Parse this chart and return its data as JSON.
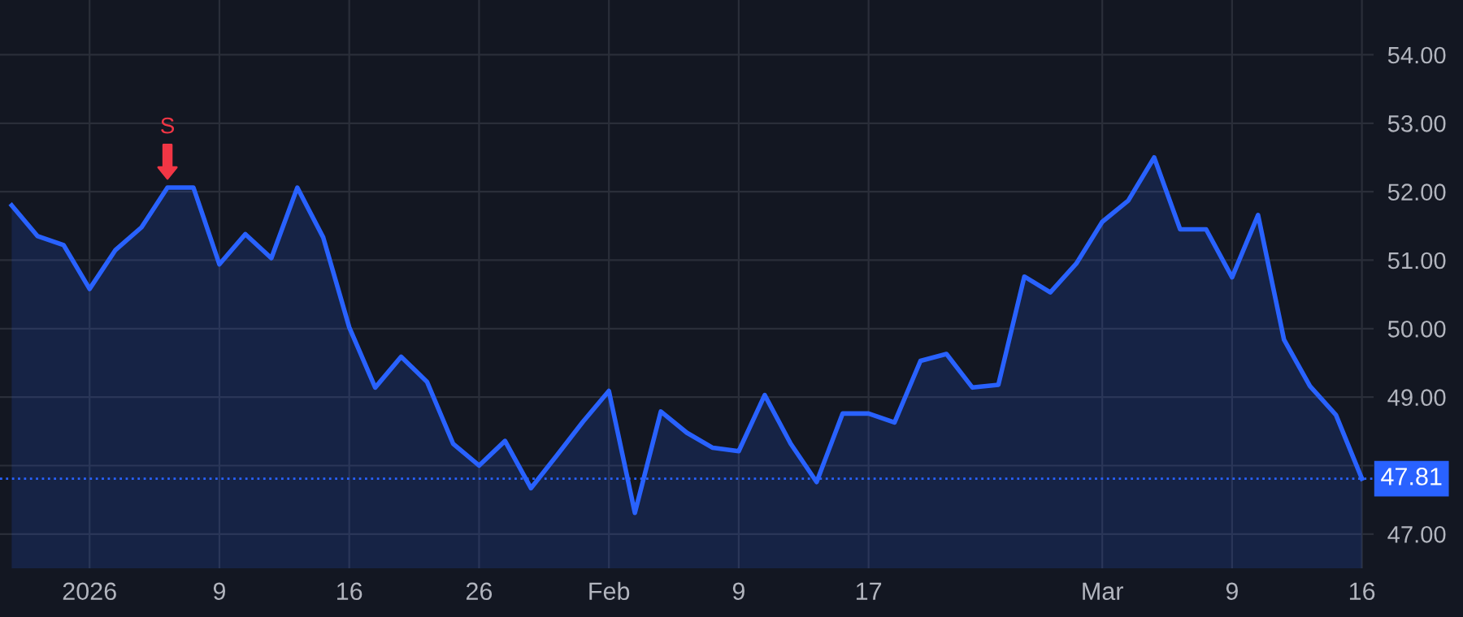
{
  "chart_data": {
    "type": "area",
    "categories": [
      null,
      null,
      null,
      "2026",
      null,
      null,
      null,
      null,
      "9",
      null,
      null,
      null,
      null,
      "16",
      null,
      null,
      null,
      null,
      "26",
      null,
      null,
      null,
      null,
      "Feb",
      null,
      null,
      null,
      null,
      "9",
      null,
      null,
      null,
      null,
      "17",
      null,
      null,
      null,
      null,
      null,
      null,
      null,
      null,
      "Mar",
      null,
      null,
      null,
      null,
      "9",
      null,
      null,
      null,
      null,
      "16"
    ],
    "series": [
      {
        "color": "#2962ff",
        "values": [
          51.8,
          51.35,
          51.22,
          50.58,
          51.15,
          51.48,
          52.06,
          52.06,
          50.94,
          51.38,
          51.03,
          52.06,
          51.33,
          50.02,
          49.14,
          49.59,
          49.22,
          48.32,
          48.0,
          48.36,
          47.67,
          48.15,
          48.64,
          49.09,
          47.31,
          48.79,
          48.48,
          48.26,
          48.21,
          49.03,
          48.32,
          47.76,
          48.76,
          48.76,
          48.63,
          49.53,
          49.63,
          49.14,
          49.18,
          50.76,
          50.53,
          50.95,
          51.56,
          51.87,
          52.5,
          51.45,
          51.45,
          50.75,
          51.66,
          49.84,
          49.16,
          48.74,
          47.81
        ]
      }
    ],
    "ylim": [
      46.5,
      54.8
    ],
    "yticks": [
      {
        "value": 47,
        "label": "47.00"
      },
      {
        "value": 48,
        "label": null
      },
      {
        "value": 49,
        "label": "49.00"
      },
      {
        "value": 50,
        "label": "50.00"
      },
      {
        "value": 51,
        "label": "51.00"
      },
      {
        "value": 52,
        "label": "52.00"
      },
      {
        "value": 53,
        "label": "53.00"
      },
      {
        "value": 54,
        "label": "54.00"
      }
    ],
    "grid": true,
    "ref_lines": [
      {
        "axis": "y",
        "value": 47.81,
        "label": "47.81",
        "color": "#2962ff",
        "line_style": "dotted"
      }
    ],
    "annotations": [
      {
        "text": "S",
        "y": 52.06
      }
    ]
  }
}
